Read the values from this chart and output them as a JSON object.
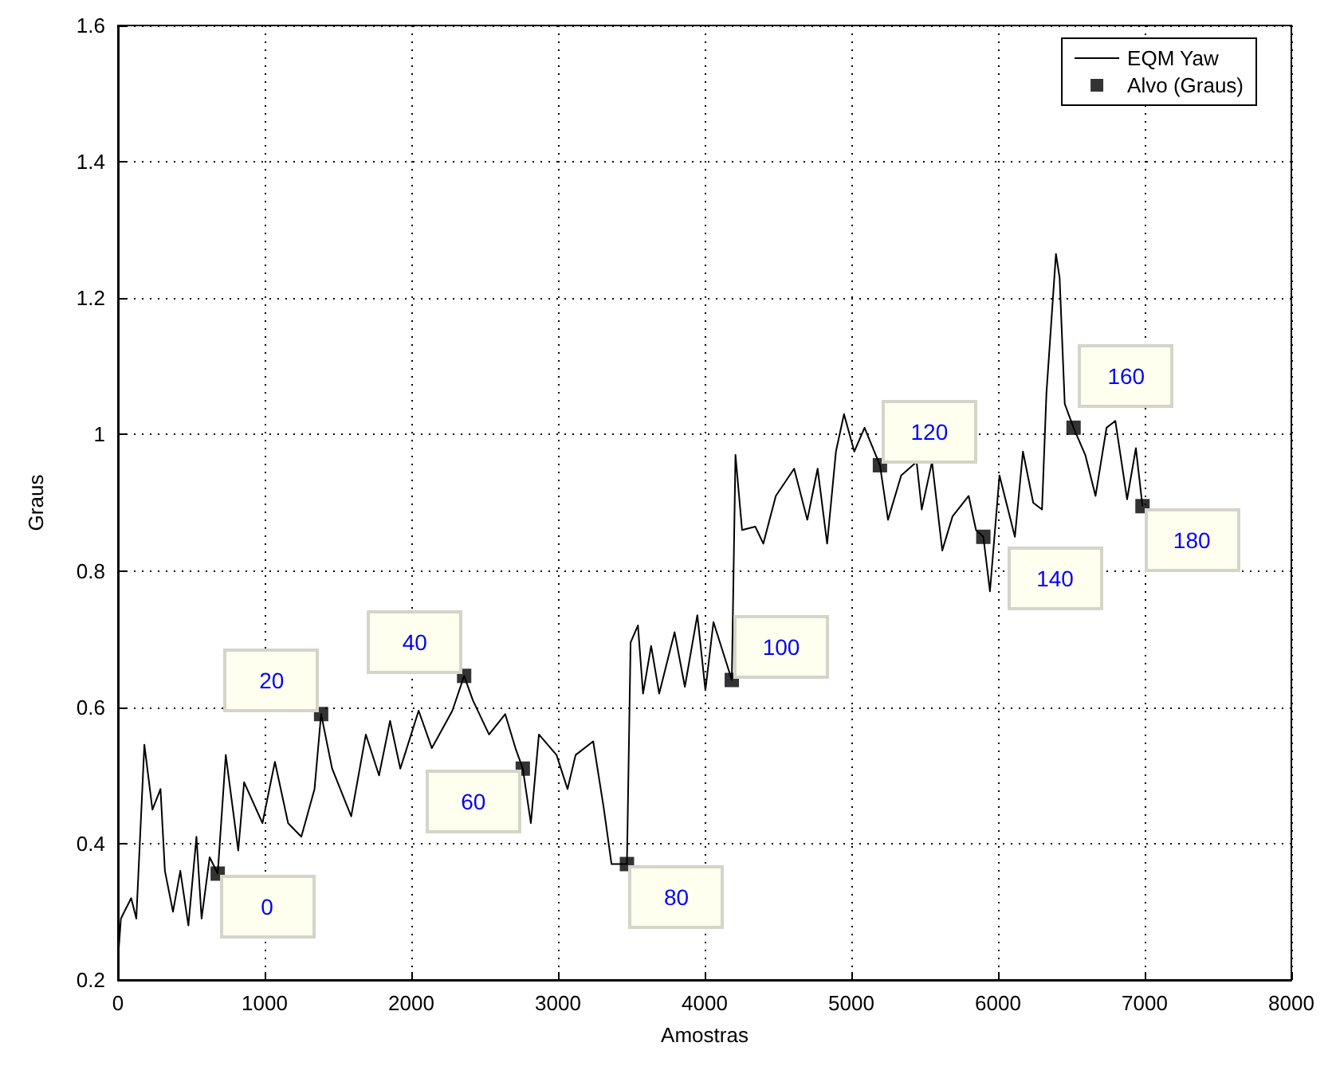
{
  "chart_data": {
    "type": "line",
    "xlabel": "Amostras",
    "ylabel": "Graus",
    "xlim": [
      0,
      8000
    ],
    "xticks": [
      0,
      1000,
      2000,
      3000,
      4000,
      5000,
      6000,
      7000,
      8000
    ],
    "ylim": [
      0.2,
      1.6
    ],
    "yticks": [
      0.2,
      0.4,
      0.6,
      0.8,
      1,
      1.2,
      1.4,
      1.6
    ],
    "grid": true,
    "legend": "top right",
    "series": [
      {
        "name": "EQM Yaw",
        "color": "#000000",
        "marker": "none",
        "line_style": "solid",
        "x": [
          0,
          20,
          90,
          125,
          180,
          235,
          290,
          320,
          375,
          425,
          480,
          535,
          570,
          625,
          680,
          735,
          820,
          860,
          985,
          1070,
          1160,
          1250,
          1340,
          1385,
          1460,
          1590,
          1690,
          1780,
          1855,
          1925,
          2050,
          2140,
          2280,
          2360,
          2420,
          2530,
          2640,
          2710,
          2760,
          2815,
          2870,
          2990,
          3065,
          3120,
          3240,
          3310,
          3365,
          3470,
          3495,
          3545,
          3580,
          3635,
          3690,
          3795,
          3865,
          3950,
          4005,
          4060,
          4185,
          4210,
          4255,
          4345,
          4400,
          4485,
          4610,
          4700,
          4770,
          4835,
          4895,
          4950,
          5020,
          5090,
          5195,
          5250,
          5340,
          5445,
          5480,
          5550,
          5620,
          5690,
          5800,
          5850,
          5900,
          5945,
          6010,
          6115,
          6170,
          6240,
          6300,
          6330,
          6395,
          6420,
          6455,
          6515,
          6595,
          6665,
          6740,
          6800,
          6880,
          6940,
          6985
        ],
        "values": [
          0.23,
          0.29,
          0.32,
          0.29,
          0.545,
          0.45,
          0.48,
          0.36,
          0.3,
          0.36,
          0.28,
          0.41,
          0.29,
          0.38,
          0.356,
          0.53,
          0.39,
          0.49,
          0.43,
          0.52,
          0.43,
          0.41,
          0.48,
          0.59,
          0.51,
          0.44,
          0.56,
          0.5,
          0.58,
          0.51,
          0.595,
          0.54,
          0.595,
          0.646,
          0.61,
          0.56,
          0.59,
          0.54,
          0.51,
          0.43,
          0.56,
          0.53,
          0.48,
          0.53,
          0.55,
          0.455,
          0.37,
          0.37,
          0.695,
          0.72,
          0.62,
          0.69,
          0.62,
          0.71,
          0.63,
          0.735,
          0.625,
          0.725,
          0.64,
          0.97,
          0.86,
          0.865,
          0.84,
          0.91,
          0.95,
          0.875,
          0.95,
          0.84,
          0.975,
          1.03,
          0.975,
          1.01,
          0.955,
          0.875,
          0.94,
          0.96,
          0.89,
          0.96,
          0.83,
          0.88,
          0.91,
          0.86,
          0.85,
          0.77,
          0.94,
          0.85,
          0.975,
          0.9,
          0.89,
          1.06,
          1.265,
          1.23,
          1.045,
          1.01,
          0.97,
          0.91,
          1.01,
          1.02,
          0.905,
          0.98,
          0.895
        ]
      },
      {
        "name": "Alvo (Graus)",
        "type": "scatter",
        "color": "#000000",
        "marker": "square",
        "x": [
          680,
          1385,
          2360,
          2760,
          3470,
          4185,
          5195,
          5900,
          6515,
          6985
        ],
        "values": [
          0.356,
          0.59,
          0.646,
          0.51,
          0.37,
          0.64,
          0.955,
          0.85,
          1.01,
          0.895
        ]
      }
    ],
    "annotations": [
      {
        "text": "0",
        "x": 680,
        "y": 0.356
      },
      {
        "text": "20",
        "x": 1385,
        "y": 0.59
      },
      {
        "text": "40",
        "x": 2360,
        "y": 0.646
      },
      {
        "text": "60",
        "x": 2760,
        "y": 0.51
      },
      {
        "text": "80",
        "x": 3470,
        "y": 0.37
      },
      {
        "text": "100",
        "x": 4185,
        "y": 0.64
      },
      {
        "text": "120",
        "x": 5195,
        "y": 0.955
      },
      {
        "text": "140",
        "x": 5900,
        "y": 0.85
      },
      {
        "text": "160",
        "x": 6515,
        "y": 1.01
      },
      {
        "text": "180",
        "x": 6985,
        "y": 0.895
      }
    ]
  }
}
